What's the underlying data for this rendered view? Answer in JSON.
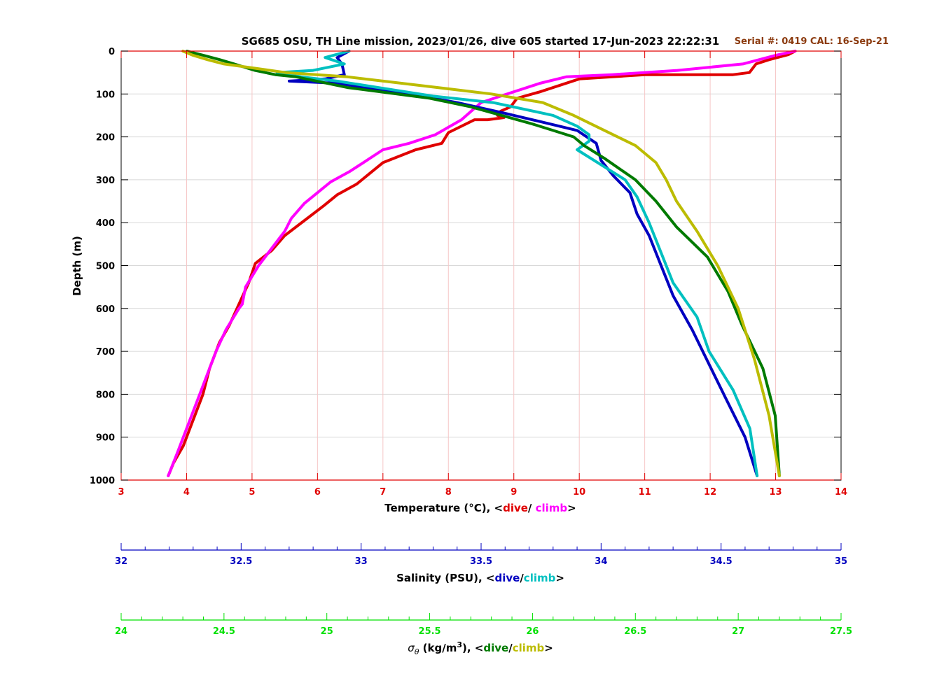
{
  "chart_data": {
    "type": "line",
    "title": "SG685 OSU, TH Line mission, 2023/01/26, dive 605 started 17-Jun-2023 22:22:31",
    "serial_text": "Serial #: 0419  CAL: 16-Sep-21",
    "ylabel": "Depth (m)",
    "ylim": [
      0,
      1000
    ],
    "yticks": [
      "0",
      "100",
      "200",
      "300",
      "400",
      "500",
      "600",
      "700",
      "800",
      "900",
      "1000"
    ],
    "grid": true,
    "axes": {
      "temperature": {
        "label_prefix": "Temperature (°C), <",
        "dive": "dive",
        "sep": "/ ",
        "climb": "climb",
        "label_suffix": ">",
        "range": [
          3,
          14
        ],
        "ticks": [
          "3",
          "4",
          "5",
          "6",
          "7",
          "8",
          "9",
          "10",
          "11",
          "12",
          "13",
          "14"
        ],
        "color": "#e00000"
      },
      "salinity": {
        "label_prefix": "Salinity (PSU), <",
        "dive": "dive",
        "sep": "/",
        "climb": "climb",
        "label_suffix": ">",
        "range": [
          32,
          35
        ],
        "ticks": [
          "32",
          "32.5",
          "33",
          "33.5",
          "34",
          "34.5",
          "35"
        ],
        "color": "#0000c0"
      },
      "density": {
        "label_prefix": "σ",
        "label_sub": "θ",
        "label_mid": " (kg/m",
        "label_sup": "3",
        "label_mid2": "), <",
        "dive": "dive",
        "sep": "/",
        "climb": "climb",
        "label_suffix": ">",
        "range": [
          24,
          27.5
        ],
        "ticks": [
          "24",
          "24.5",
          "25",
          "25.5",
          "26",
          "26.5",
          "27",
          "27.5"
        ],
        "color": "#00e000"
      }
    },
    "series": [
      {
        "axis": "temperature",
        "color": "#e00000",
        "width": 4,
        "x": [
          13.3,
          13.2,
          12.9,
          12.7,
          12.6,
          12.35,
          11.0,
          10.0,
          9.4,
          9.05,
          8.95,
          8.8,
          8.75,
          8.85,
          8.6,
          8.4,
          8.0,
          7.9,
          7.5,
          7.0,
          6.8,
          6.6,
          6.3,
          6.1,
          5.8,
          5.5,
          5.3,
          5.05,
          4.95,
          4.8,
          4.65,
          4.5,
          4.35,
          4.25,
          4.1,
          3.95,
          3.8,
          3.72
        ],
        "y": [
          0,
          8,
          20,
          30,
          50,
          55,
          55,
          65,
          95,
          110,
          130,
          140,
          150,
          155,
          160,
          160,
          190,
          215,
          230,
          260,
          285,
          310,
          335,
          360,
          395,
          430,
          465,
          495,
          540,
          590,
          640,
          680,
          740,
          800,
          860,
          920,
          960,
          990
        ]
      },
      {
        "axis": "temperature",
        "color": "#ff00ff",
        "width": 4,
        "x": [
          13.3,
          13.0,
          12.5,
          11.5,
          10.5,
          9.8,
          9.4,
          9.0,
          8.7,
          8.5,
          8.35,
          8.2,
          7.8,
          7.4,
          7.0,
          6.7,
          6.5,
          6.2,
          6.0,
          5.8,
          5.6,
          5.5,
          5.3,
          5.1,
          4.9,
          4.85,
          4.8,
          4.6,
          4.45,
          4.3,
          4.15,
          4.0,
          3.85,
          3.72
        ],
        "y": [
          0,
          10,
          30,
          45,
          55,
          60,
          75,
          95,
          110,
          120,
          140,
          160,
          195,
          215,
          230,
          260,
          280,
          305,
          330,
          355,
          390,
          420,
          460,
          500,
          550,
          590,
          600,
          650,
          700,
          760,
          820,
          880,
          940,
          990
        ]
      },
      {
        "axis": "salinity",
        "color": "#0000c0",
        "width": 4,
        "x": [
          32.95,
          32.9,
          32.92,
          32.93,
          32.85,
          32.7,
          32.9,
          33.2,
          33.4,
          33.6,
          33.75,
          33.9,
          33.98,
          34.0,
          34.05,
          34.12,
          34.15,
          34.2,
          34.25,
          34.3,
          34.38,
          34.45,
          34.52,
          34.6,
          34.65
        ],
        "y": [
          0,
          15,
          30,
          55,
          65,
          70,
          75,
          100,
          120,
          145,
          165,
          185,
          215,
          255,
          290,
          330,
          380,
          430,
          500,
          570,
          650,
          730,
          810,
          900,
          990
        ]
      },
      {
        "axis": "salinity",
        "color": "#00c0c0",
        "width": 4,
        "x": [
          32.95,
          32.85,
          32.93,
          32.8,
          32.65,
          32.75,
          32.9,
          33.3,
          33.55,
          33.8,
          33.9,
          33.95,
          33.95,
          33.9,
          34.0,
          34.1,
          34.15,
          34.2,
          34.25,
          34.3,
          34.4,
          34.45,
          34.55,
          34.62,
          34.65
        ],
        "y": [
          0,
          15,
          30,
          45,
          50,
          60,
          70,
          105,
          120,
          150,
          175,
          195,
          210,
          230,
          265,
          300,
          340,
          400,
          470,
          540,
          620,
          700,
          790,
          880,
          990
        ]
      },
      {
        "axis": "density",
        "color": "#007a00",
        "width": 4,
        "x": [
          24.32,
          24.4,
          24.48,
          24.55,
          24.65,
          24.75,
          24.85,
          25.1,
          25.5,
          25.7,
          25.85,
          26.0,
          26.1,
          26.2,
          26.25,
          26.35,
          26.5,
          26.6,
          26.7,
          26.85,
          26.95,
          27.02,
          27.12,
          27.18,
          27.2
        ],
        "y": [
          0,
          10,
          20,
          30,
          45,
          55,
          60,
          85,
          110,
          130,
          150,
          170,
          185,
          200,
          220,
          250,
          300,
          350,
          410,
          480,
          560,
          640,
          740,
          850,
          990
        ]
      },
      {
        "axis": "density",
        "color": "#bcbc00",
        "width": 4,
        "x": [
          24.3,
          24.35,
          24.42,
          24.5,
          24.65,
          24.8,
          25.1,
          25.45,
          25.8,
          26.05,
          26.2,
          26.35,
          26.5,
          26.6,
          26.65,
          26.7,
          26.8,
          26.9,
          27.0,
          27.08,
          27.15,
          27.2
        ],
        "y": [
          0,
          10,
          20,
          30,
          40,
          50,
          60,
          80,
          100,
          120,
          150,
          185,
          220,
          260,
          300,
          350,
          420,
          500,
          600,
          720,
          850,
          990
        ]
      }
    ]
  }
}
